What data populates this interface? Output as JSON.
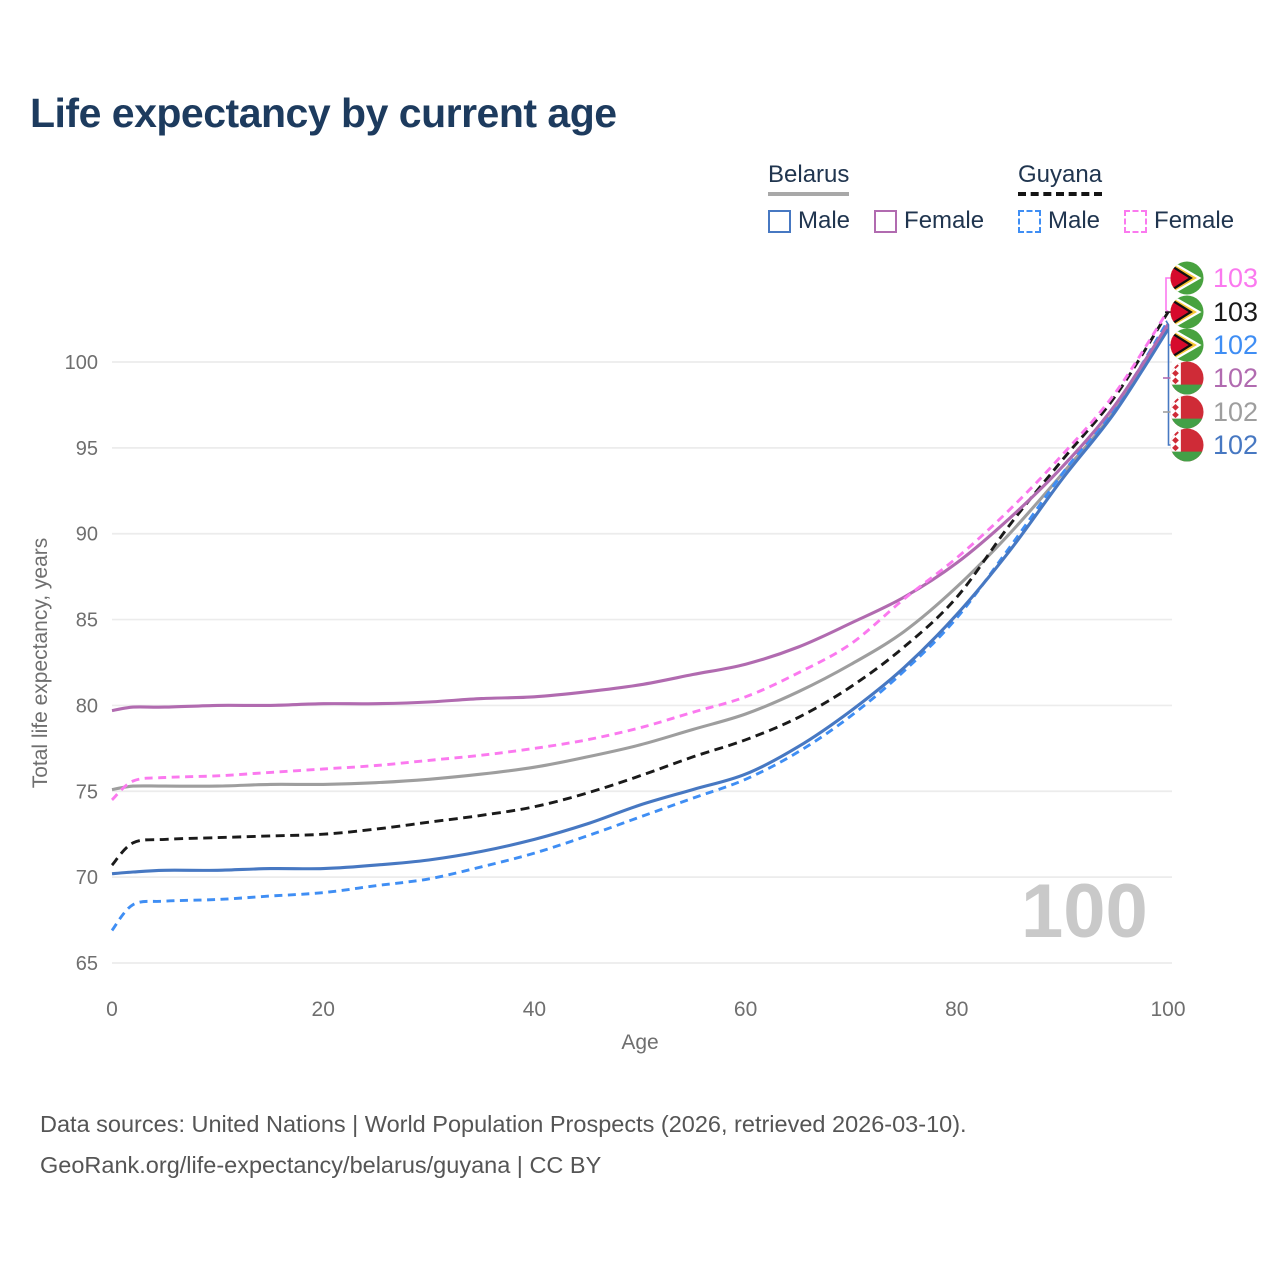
{
  "title": "Life expectancy by current age",
  "watermark": "100",
  "legend": {
    "groups": [
      {
        "label": "Belarus",
        "line_style": "solid",
        "header_underline_color": "#a8a8a8",
        "items": [
          {
            "label": "Male",
            "color": "#4778c2"
          },
          {
            "label": "Female",
            "color": "#b16bb0"
          }
        ]
      },
      {
        "label": "Guyana",
        "line_style": "dashed",
        "header_underline_color": "#141414",
        "items": [
          {
            "label": "Male",
            "color": "#3f8ef4"
          },
          {
            "label": "Female",
            "color": "#fb79ef"
          }
        ]
      }
    ]
  },
  "end_labels": [
    {
      "value": "103",
      "icon": "guyana-flag-icon",
      "country": "Guyana",
      "color": "#fb79ef"
    },
    {
      "value": "103",
      "icon": "guyana-flag-icon",
      "country": "Guyana",
      "color": "#1a1a1a"
    },
    {
      "value": "102",
      "icon": "guyana-flag-icon",
      "country": "Guyana",
      "color": "#3f8ef4"
    },
    {
      "value": "102",
      "icon": "belarus-flag-icon",
      "country": "Belarus",
      "color": "#b16bb0"
    },
    {
      "value": "102",
      "icon": "belarus-flag-icon",
      "country": "Belarus",
      "color": "#9e9e9e"
    },
    {
      "value": "102",
      "icon": "belarus-flag-icon",
      "country": "Belarus",
      "color": "#4778c2"
    }
  ],
  "footer": {
    "line1": "Data sources: United Nations | World Population Prospects (2026, retrieved 2026-03-10).",
    "line2": "GeoRank.org/life-expectancy/belarus/guyana | CC BY"
  },
  "chart_data": {
    "type": "line",
    "title": "Life expectancy by current age",
    "xlabel": "Age",
    "ylabel": "Total life expectancy, years",
    "xlim": [
      0,
      100
    ],
    "ylim": [
      63.5,
      104.5
    ],
    "xticks": [
      0,
      20,
      40,
      60,
      80,
      100
    ],
    "yticks": [
      65,
      70,
      75,
      80,
      85,
      90,
      95,
      100
    ],
    "grid": "horizontal",
    "grid_color": "#ececec",
    "tick_color": "#6f6f6f",
    "legend_position": "top-right",
    "x": [
      0,
      2,
      5,
      10,
      15,
      20,
      25,
      30,
      35,
      40,
      45,
      50,
      55,
      60,
      65,
      70,
      75,
      80,
      85,
      90,
      95,
      100
    ],
    "series": [
      {
        "name": "Belarus (both sexes)",
        "country": "Belarus",
        "group": "Total",
        "dash": "solid",
        "color": "#9e9e9e",
        "end_label": "102",
        "values": [
          75.1,
          75.3,
          75.3,
          75.3,
          75.4,
          75.4,
          75.5,
          75.7,
          76.0,
          76.4,
          77.0,
          77.7,
          78.6,
          79.5,
          80.8,
          82.4,
          84.3,
          86.9,
          90.0,
          93.5,
          97.2,
          102.0
        ]
      },
      {
        "name": "Guyana (both sexes)",
        "country": "Guyana",
        "group": "Total",
        "dash": "dashed",
        "color": "#1a1a1a",
        "end_label": "103",
        "values": [
          70.7,
          72.0,
          72.2,
          72.3,
          72.4,
          72.5,
          72.8,
          73.2,
          73.6,
          74.1,
          74.9,
          75.9,
          77.0,
          78.0,
          79.3,
          81.1,
          83.4,
          86.3,
          90.5,
          94.3,
          98.0,
          102.9
        ]
      },
      {
        "name": "Guyana Male",
        "country": "Guyana",
        "group": "Male",
        "dash": "dashed",
        "color": "#3f8ef4",
        "end_label": "102",
        "values": [
          66.9,
          68.4,
          68.6,
          68.7,
          68.9,
          69.1,
          69.5,
          69.9,
          70.6,
          71.4,
          72.4,
          73.5,
          74.6,
          75.7,
          77.3,
          79.4,
          82.0,
          85.1,
          89.2,
          93.5,
          97.4,
          102.4
        ]
      },
      {
        "name": "Belarus Male",
        "country": "Belarus",
        "group": "Male",
        "dash": "solid",
        "color": "#4778c2",
        "end_label": "102",
        "values": [
          70.2,
          70.3,
          70.4,
          70.4,
          70.5,
          70.5,
          70.7,
          71.0,
          71.5,
          72.2,
          73.1,
          74.2,
          75.1,
          76.0,
          77.6,
          79.7,
          82.2,
          85.3,
          89.0,
          93.2,
          97.1,
          101.9
        ]
      },
      {
        "name": "Belarus Female",
        "country": "Belarus",
        "group": "Female",
        "dash": "solid",
        "color": "#b16bb0",
        "end_label": "102",
        "values": [
          79.7,
          79.9,
          79.9,
          80.0,
          80.0,
          80.1,
          80.1,
          80.2,
          80.4,
          80.5,
          80.8,
          81.2,
          81.8,
          82.4,
          83.4,
          84.8,
          86.3,
          88.3,
          90.9,
          93.9,
          97.5,
          102.2
        ]
      },
      {
        "name": "Guyana Female",
        "country": "Guyana",
        "group": "Female",
        "dash": "dashed",
        "color": "#fb79ef",
        "end_label": "103",
        "values": [
          74.5,
          75.6,
          75.8,
          75.9,
          76.1,
          76.3,
          76.5,
          76.8,
          77.1,
          77.5,
          78.0,
          78.7,
          79.6,
          80.5,
          81.9,
          83.6,
          86.2,
          88.6,
          91.4,
          94.6,
          98.2,
          103.0
        ]
      }
    ]
  }
}
